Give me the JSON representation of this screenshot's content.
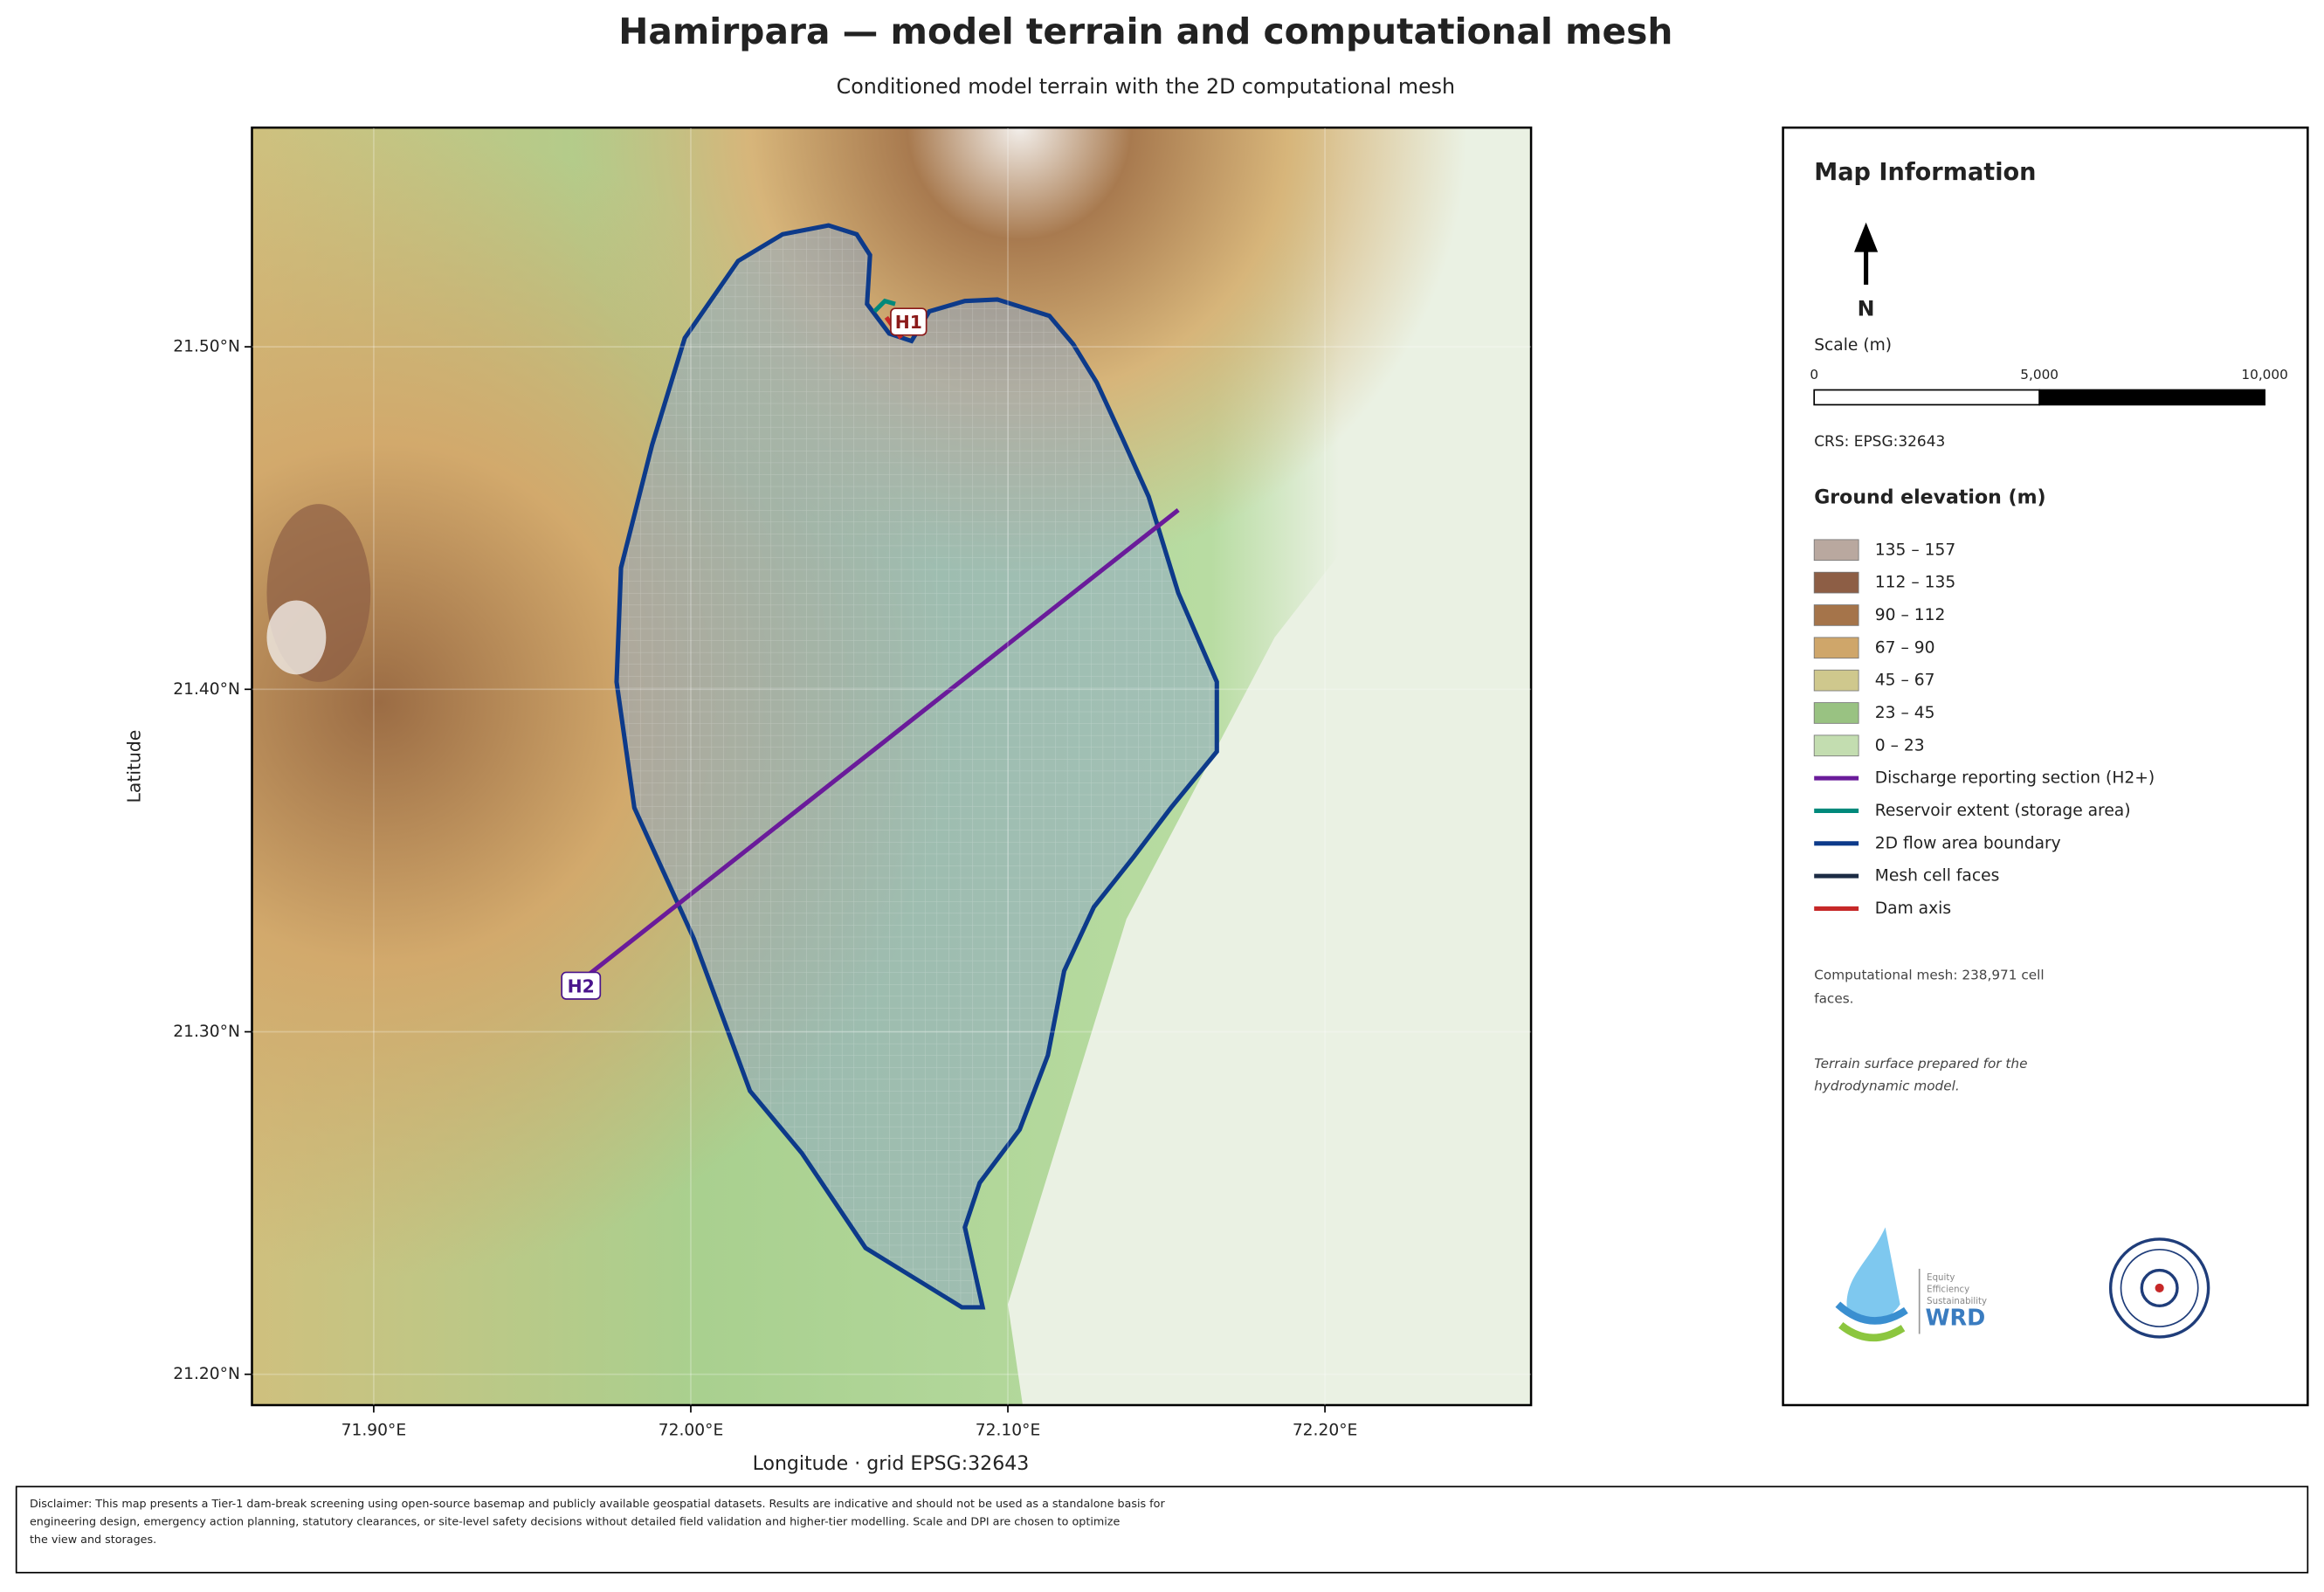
{
  "title": "Hamirpara — model terrain and computational mesh",
  "subtitle": "Conditioned model terrain with the 2D computational mesh",
  "map": {
    "xlabel": "Longitude   ·   grid EPSG:32643",
    "ylabel": "Latitude",
    "xlim": [
      71.8616,
      72.265
    ],
    "ylim": [
      21.191,
      21.564
    ],
    "xticks": [
      {
        "value": 71.9,
        "label": "71.90°E"
      },
      {
        "value": 72.0,
        "label": "72.00°E"
      },
      {
        "value": 72.1,
        "label": "72.10°E"
      },
      {
        "value": 72.2,
        "label": "72.20°E"
      }
    ],
    "yticks": [
      {
        "value": 21.5,
        "label": "21.50°N"
      },
      {
        "value": 21.4,
        "label": "21.40°N"
      },
      {
        "value": 21.3,
        "label": "21.30°N"
      },
      {
        "value": 21.2,
        "label": "21.20°N"
      }
    ],
    "labels": [
      "H1",
      "H2"
    ]
  },
  "panel": {
    "title": "Map Information",
    "north": "N",
    "scale_title": "Scale (m)",
    "scale_labels": [
      "0",
      "5,000",
      "10,000"
    ],
    "crs": "CRS: EPSG:32643",
    "legend_title": "Ground elevation (m)",
    "legend": [
      {
        "label": "135 – 157",
        "color": "#b9a89f",
        "kind": "patch"
      },
      {
        "label": "112 – 135",
        "color": "#8d5e45",
        "kind": "patch"
      },
      {
        "label": "90 – 112",
        "color": "#a5744a",
        "kind": "patch"
      },
      {
        "label": "67 – 90",
        "color": "#cfa66a",
        "kind": "patch"
      },
      {
        "label": "45 – 67",
        "color": "#cfc88d",
        "kind": "patch"
      },
      {
        "label": "23 – 45",
        "color": "#99c282",
        "kind": "patch"
      },
      {
        "label": "0 – 23",
        "color": "#c3ddb0",
        "kind": "patch"
      },
      {
        "label": "Discharge reporting section (H2+)",
        "color": "#6a1b9a",
        "kind": "line"
      },
      {
        "label": "Reservoir extent (storage area)",
        "color": "#00897b",
        "kind": "line"
      },
      {
        "label": "2D flow area boundary",
        "color": "#0d3a8a",
        "kind": "line"
      },
      {
        "label": "Mesh cell faces",
        "color": "#1c2b44",
        "kind": "line"
      },
      {
        "label": "Dam axis",
        "color": "#c62828",
        "kind": "line"
      }
    ],
    "note1": [
      "Computational mesh: 238,971 cell",
      "faces."
    ],
    "note2": [
      "Terrain surface prepared for the",
      "hydrodynamic model."
    ],
    "logo_text": [
      "Equity",
      "Efficiency",
      "Sustainability",
      "WRD"
    ]
  },
  "disclaimer": [
    "Disclaimer: This map presents a Tier-1 dam-break screening using open-source basemap and publicly available geospatial datasets. Results are indicative and should not be used as a standalone basis for",
    "engineering design, emergency action planning, statutory clearances, or site-level safety decisions without detailed field validation and higher-tier modelling. Scale and DPI are chosen to optimize",
    "the view and storages."
  ]
}
